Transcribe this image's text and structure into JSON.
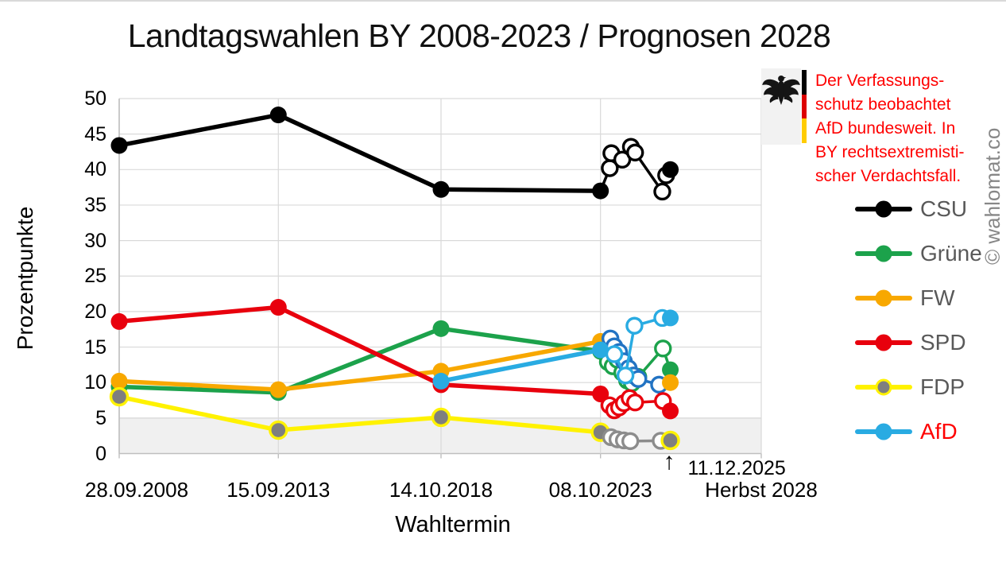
{
  "page": {
    "watermark": "© wahlomat.co"
  },
  "chart_data": {
    "type": "line",
    "title": "Landtagswahlen BY 2008-2023 / Prognosen 2028",
    "xlabel": "Wahltermin",
    "ylabel": "Prozentpunkte",
    "ylim": [
      0,
      50
    ],
    "ytick_step": 5,
    "yticks": [
      0,
      5,
      10,
      15,
      20,
      25,
      30,
      35,
      40,
      45,
      50
    ],
    "grid": true,
    "legend_position": "right",
    "x_ticks": [
      {
        "label": "28.09.2008",
        "year": 2008.74
      },
      {
        "label": "15.09.2013",
        "year": 2013.71
      },
      {
        "label": "14.10.2018",
        "year": 2018.79
      },
      {
        "label": "08.10.2023",
        "year": 2023.77
      },
      {
        "label": "Herbst 2028",
        "year": 2028.79
      }
    ],
    "threshold_band": {
      "from": 0,
      "to": 5,
      "color": "#F0F0F0"
    },
    "annotation_arrow": {
      "year": 2025.95,
      "glyph": "↑",
      "label": "11.12.2025"
    },
    "note": {
      "color": "#FF0000",
      "lines": [
        "Der Verfassungs-",
        "schutz beobachtet",
        "AfD bundesweit. In",
        "BY rechtsextremisti-",
        "scher Verdachtsfall."
      ]
    },
    "flag_colors": [
      "#000000",
      "#DD0000",
      "#FFCC00"
    ],
    "series": [
      {
        "name": "CSU",
        "line_color": "#000000",
        "poll_color": "#000000",
        "legend_text_color": "#595959",
        "elections": [
          [
            2008.74,
            43.4
          ],
          [
            2013.71,
            47.7
          ],
          [
            2018.79,
            37.2
          ],
          [
            2023.77,
            37.0
          ]
        ],
        "polls": [
          [
            2024.06,
            40.2
          ],
          [
            2024.11,
            42.3
          ],
          [
            2024.45,
            41.4
          ],
          [
            2024.72,
            43.2
          ],
          [
            2024.85,
            42.4
          ],
          [
            2025.7,
            36.9
          ],
          [
            2025.82,
            39.2
          ]
        ],
        "latest": [
          2025.95,
          40.0
        ]
      },
      {
        "name": "Grüne",
        "line_color": "#1CA24B",
        "poll_color": "#1CA24B",
        "legend_text_color": "#595959",
        "elections": [
          [
            2008.74,
            9.4
          ],
          [
            2013.71,
            8.6
          ],
          [
            2018.79,
            17.6
          ],
          [
            2023.77,
            14.4
          ]
        ],
        "polls": [
          [
            2024.0,
            12.9
          ],
          [
            2024.15,
            12.3
          ],
          [
            2024.3,
            13.2
          ],
          [
            2024.45,
            11.4
          ],
          [
            2024.6,
            10.3
          ],
          [
            2024.75,
            9.9
          ],
          [
            2024.95,
            10.8
          ],
          [
            2025.72,
            14.8
          ]
        ],
        "latest": [
          2025.95,
          11.8
        ]
      },
      {
        "name": "FW",
        "line_color": "#F8A800",
        "poll_color": "#2273C3",
        "legend_text_color": "#595959",
        "elections": [
          [
            2008.74,
            10.2
          ],
          [
            2013.71,
            9.0
          ],
          [
            2018.79,
            11.6
          ],
          [
            2023.77,
            15.8
          ]
        ],
        "polls": [
          [
            2024.08,
            16.2
          ],
          [
            2024.2,
            15.1
          ],
          [
            2024.35,
            14.3
          ],
          [
            2024.5,
            13.0
          ],
          [
            2024.65,
            12.0
          ],
          [
            2024.8,
            11.0
          ],
          [
            2024.95,
            10.5
          ],
          [
            2025.6,
            9.7
          ]
        ],
        "latest": [
          2025.95,
          10.0
        ]
      },
      {
        "name": "SPD",
        "line_color": "#E8000D",
        "poll_color": "#E8000D",
        "legend_text_color": "#595959",
        "elections": [
          [
            2008.74,
            18.6
          ],
          [
            2013.71,
            20.6
          ],
          [
            2018.79,
            9.7
          ],
          [
            2023.77,
            8.4
          ]
        ],
        "polls": [
          [
            2024.05,
            6.8
          ],
          [
            2024.2,
            6.1
          ],
          [
            2024.35,
            6.5
          ],
          [
            2024.5,
            7.1
          ],
          [
            2024.68,
            7.8
          ],
          [
            2024.85,
            7.2
          ],
          [
            2025.72,
            7.4
          ]
        ],
        "latest": [
          2025.95,
          6.0
        ]
      },
      {
        "name": "FDP",
        "line_color": "#FFF200",
        "poll_color": "#8C8C8C",
        "marker_fill": "#7F7F7F",
        "marker_ring": "#FFF200",
        "legend_text_color": "#595959",
        "elections": [
          [
            2008.74,
            8.0
          ],
          [
            2013.71,
            3.3
          ],
          [
            2018.79,
            5.1
          ],
          [
            2023.77,
            3.0
          ]
        ],
        "polls": [
          [
            2024.1,
            2.3
          ],
          [
            2024.3,
            2.0
          ],
          [
            2024.5,
            1.85
          ],
          [
            2024.7,
            1.75
          ],
          [
            2025.65,
            1.8
          ]
        ],
        "latest": [
          2025.95,
          1.85
        ]
      },
      {
        "name": "AfD",
        "line_color": "#29ABE2",
        "poll_color": "#29ABE2",
        "legend_text_color": "#FF0000",
        "elections": [
          [
            2018.79,
            10.2
          ],
          [
            2023.77,
            14.6
          ]
        ],
        "polls": [
          [
            2024.2,
            14.0
          ],
          [
            2024.55,
            11.0
          ],
          [
            2024.83,
            18.0
          ],
          [
            2025.7,
            19.1
          ]
        ],
        "latest": [
          2025.95,
          19.1
        ]
      }
    ]
  }
}
